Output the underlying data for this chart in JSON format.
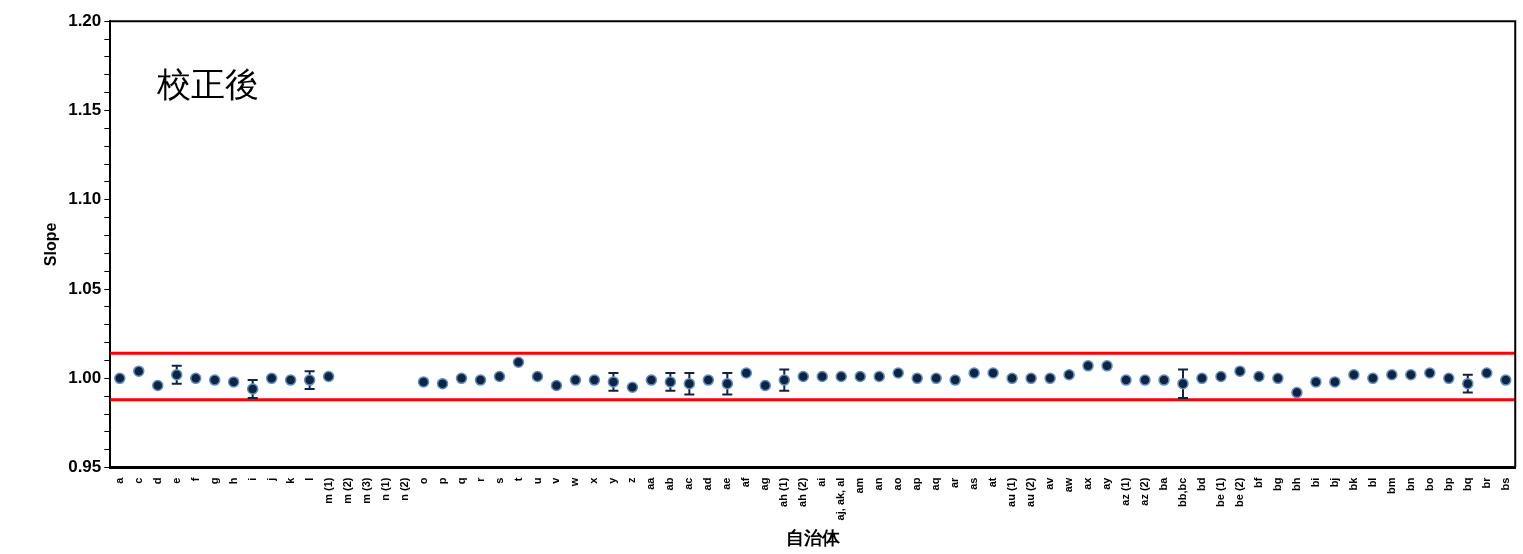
{
  "chart_data": {
    "type": "scatter",
    "xlabel": "自治体",
    "ylabel": "Slope",
    "annotations": [
      "校正後"
    ],
    "categories": [
      "a",
      "c",
      "d",
      "e",
      "f",
      "g",
      "h",
      "i",
      "j",
      "k",
      "l",
      "m (1)",
      "m (2)",
      "m (3)",
      "n (1)",
      "n (2)",
      "o",
      "p",
      "q",
      "r",
      "s",
      "t",
      "u",
      "v",
      "w",
      "x",
      "y",
      "z",
      "aa",
      "ab",
      "ac",
      "ad",
      "ae",
      "af",
      "ag",
      "ah (1)",
      "ah (2)",
      "ai",
      "aj, ak, al",
      "am",
      "an",
      "ao",
      "ap",
      "aq",
      "ar",
      "as",
      "at",
      "au (1)",
      "au (2)",
      "av",
      "aw",
      "ax",
      "ay",
      "az (1)",
      "az (2)",
      "ba",
      "bb,bc",
      "bd",
      "be (1)",
      "be (2)",
      "bf",
      "bg",
      "bh",
      "bi",
      "bj",
      "bk",
      "bl",
      "bm",
      "bn",
      "bo",
      "bp",
      "bq",
      "br",
      "bs"
    ],
    "series": [
      {
        "color": "#10233f",
        "values": [
          1.0,
          1.004,
          0.996,
          1.002,
          1.0,
          0.999,
          0.998,
          0.994,
          1.0,
          0.999,
          0.999,
          1.001,
          null,
          null,
          null,
          null,
          0.998,
          0.997,
          1.0,
          0.999,
          1.001,
          1.009,
          1.001,
          0.996,
          0.999,
          0.999,
          0.998,
          0.995,
          0.999,
          0.998,
          0.997,
          0.999,
          0.997,
          1.003,
          0.996,
          0.999,
          1.001,
          1.001,
          1.001,
          1.001,
          1.001,
          1.003,
          1.0,
          1.0,
          0.999,
          1.003,
          1.003,
          1.0,
          1.0,
          1.0,
          1.002,
          1.007,
          1.007,
          0.999,
          0.999,
          0.999,
          0.997,
          1.0,
          1.001,
          1.004,
          1.001,
          1.0,
          0.992,
          0.998,
          0.998,
          1.002,
          1.0,
          1.002,
          1.002,
          1.003,
          1.0,
          0.997,
          1.003,
          0.999
        ],
        "errors": [
          null,
          null,
          null,
          0.005,
          null,
          null,
          null,
          0.005,
          null,
          null,
          0.005,
          null,
          null,
          null,
          null,
          null,
          null,
          null,
          null,
          null,
          null,
          null,
          null,
          null,
          null,
          null,
          0.005,
          null,
          null,
          0.005,
          0.006,
          null,
          0.006,
          null,
          null,
          0.006,
          null,
          null,
          null,
          null,
          null,
          null,
          null,
          null,
          null,
          null,
          null,
          null,
          null,
          null,
          null,
          null,
          null,
          null,
          null,
          null,
          0.008,
          null,
          null,
          null,
          null,
          null,
          null,
          null,
          null,
          null,
          null,
          null,
          null,
          null,
          null,
          0.005,
          null,
          null
        ]
      }
    ],
    "ylim": [
      0.95,
      1.2
    ],
    "yticks": [
      {
        "value": 0.95,
        "label": "0.95"
      },
      {
        "value": 0.96,
        "label": null
      },
      {
        "value": 0.97,
        "label": null
      },
      {
        "value": 0.98,
        "label": null
      },
      {
        "value": 0.99,
        "label": null
      },
      {
        "value": 1.0,
        "label": "1.00"
      },
      {
        "value": 1.01,
        "label": null
      },
      {
        "value": 1.02,
        "label": null
      },
      {
        "value": 1.03,
        "label": null
      },
      {
        "value": 1.04,
        "label": null
      },
      {
        "value": 1.05,
        "label": "1.05"
      },
      {
        "value": 1.06,
        "label": null
      },
      {
        "value": 1.07,
        "label": null
      },
      {
        "value": 1.08,
        "label": null
      },
      {
        "value": 1.09,
        "label": null
      },
      {
        "value": 1.1,
        "label": "1.10"
      },
      {
        "value": 1.11,
        "label": null
      },
      {
        "value": 1.12,
        "label": null
      },
      {
        "value": 1.13,
        "label": null
      },
      {
        "value": 1.14,
        "label": null
      },
      {
        "value": 1.15,
        "label": "1.15"
      },
      {
        "value": 1.16,
        "label": null
      },
      {
        "value": 1.17,
        "label": null
      },
      {
        "value": 1.18,
        "label": null
      },
      {
        "value": 1.19,
        "label": null
      },
      {
        "value": 1.2,
        "label": "1.20"
      }
    ],
    "ref_lines": [
      {
        "axis": "y",
        "value": 1.014,
        "color": "#ff0000"
      },
      {
        "axis": "y",
        "value": 0.988,
        "color": "#ff0000"
      }
    ],
    "marker": "circle",
    "grid": false,
    "legend": false
  }
}
